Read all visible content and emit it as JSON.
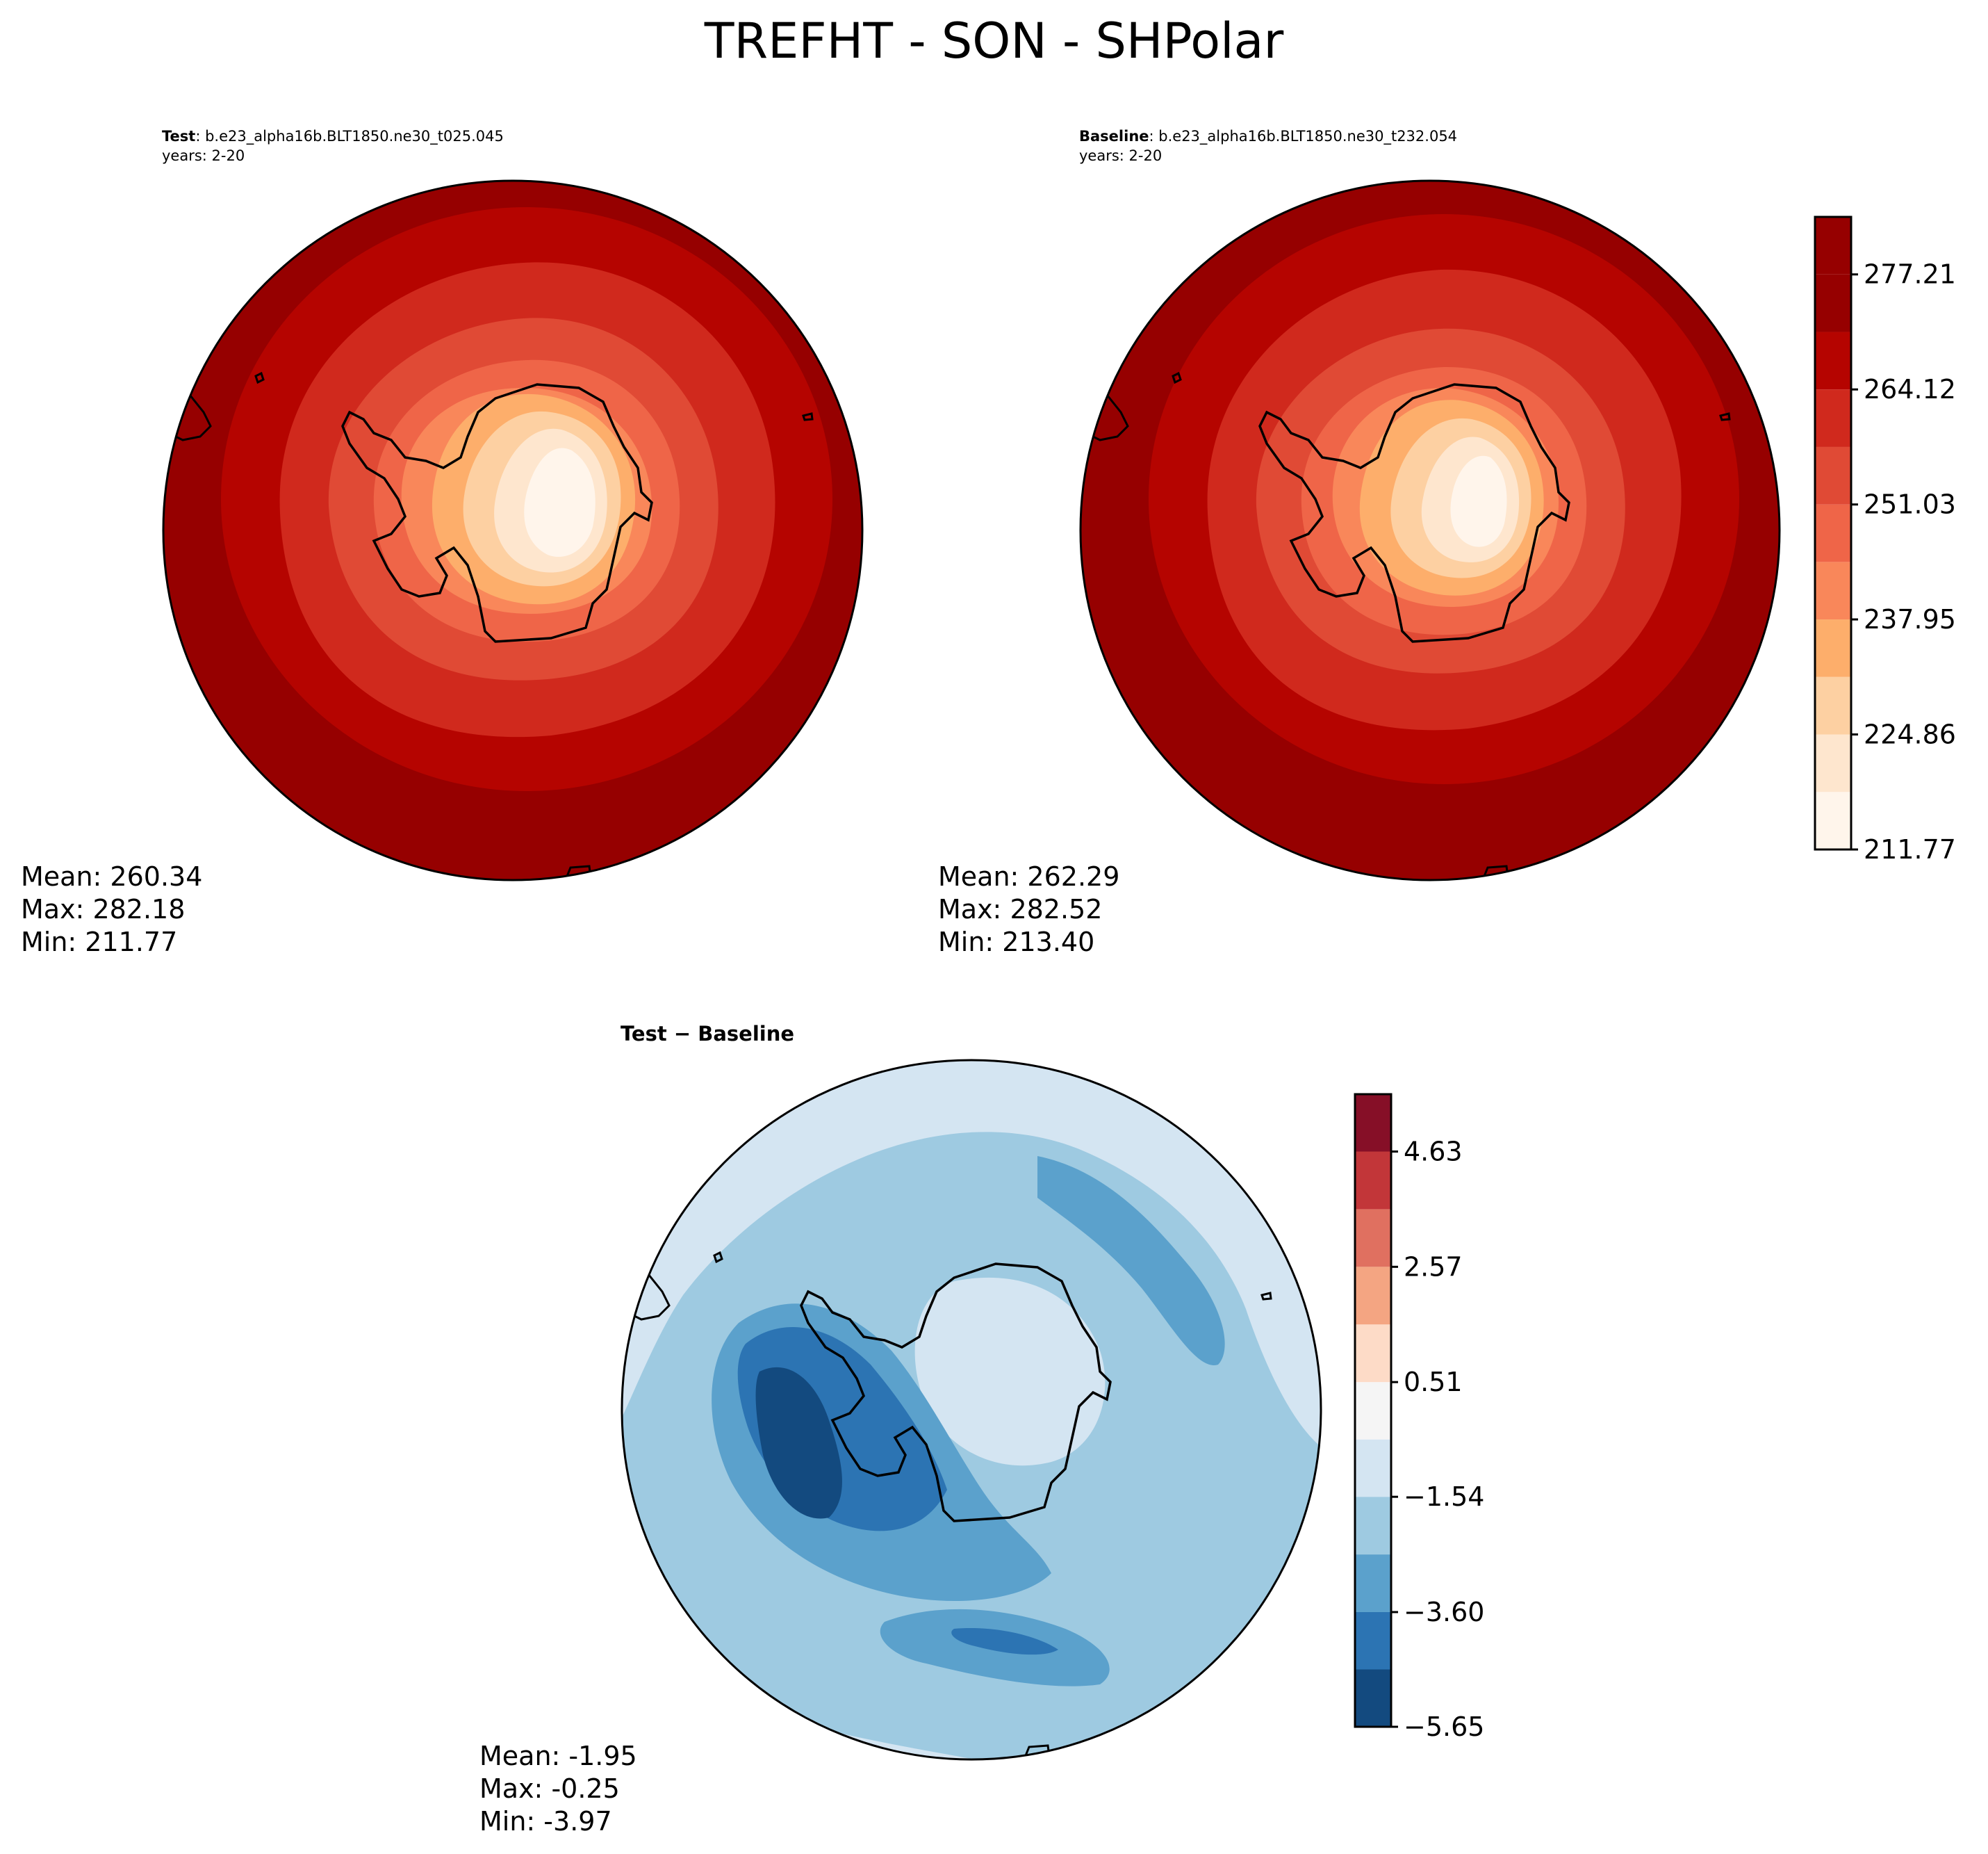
{
  "figure": {
    "title": "TREFHT - SON - SHPolar"
  },
  "panels": {
    "test": {
      "label": "Test",
      "case": ": b.e23_alpha16b.BLT1850.ne30_t025.045",
      "years": "years: 2-20",
      "mean": "Mean: 260.34",
      "max": "Max: 282.18",
      "min": "Min: 211.77"
    },
    "baseline": {
      "label": "Baseline",
      "case": ": b.e23_alpha16b.BLT1850.ne30_t232.054",
      "years": "years: 2-20",
      "mean": "Mean: 262.29",
      "max": "Max: 282.52",
      "min": "Min: 213.40"
    },
    "diff": {
      "title": "Test − Baseline",
      "mean": "Mean: -1.95",
      "max": "Max: -0.25",
      "min": "Min: -3.97"
    }
  },
  "chart_data": [
    {
      "type": "heatmap",
      "panel": "Test",
      "projection": "south-polar-stereographic",
      "colormap": "Reds",
      "colorbar_levels": [
        211.77,
        218.315,
        224.86,
        231.405,
        237.95,
        244.49,
        251.03,
        257.575,
        264.12,
        270.665,
        277.21,
        283.755
      ],
      "colorbar_ticks": [
        "211.77",
        "224.86",
        "237.95",
        "251.03",
        "264.12",
        "277.21"
      ],
      "colors": [
        "#fff5eb",
        "#fee6ce",
        "#fdd0a2",
        "#fdae6b",
        "#f9875a",
        "#ef6548",
        "#e04a35",
        "#d0291d",
        "#b50400",
        "#960000"
      ],
      "stats": {
        "mean": 260.34,
        "max": 282.18,
        "min": 211.77
      }
    },
    {
      "type": "heatmap",
      "panel": "Baseline",
      "projection": "south-polar-stereographic",
      "colormap": "Reds",
      "colorbar_levels": [
        211.77,
        218.315,
        224.86,
        231.405,
        237.95,
        244.49,
        251.03,
        257.575,
        264.12,
        270.665,
        277.21,
        283.755
      ],
      "colorbar_ticks": [
        "211.77",
        "224.86",
        "237.95",
        "251.03",
        "264.12",
        "277.21"
      ],
      "stats": {
        "mean": 262.29,
        "max": 282.52,
        "min": 213.4
      }
    },
    {
      "type": "heatmap",
      "panel": "Test − Baseline",
      "projection": "south-polar-stereographic",
      "colormap": "RdBu_r",
      "colorbar_levels": [
        -5.65,
        -4.625,
        -3.6,
        -2.57,
        -1.54,
        -0.515,
        0.51,
        1.54,
        2.57,
        3.6,
        4.63,
        5.655
      ],
      "colorbar_ticks": [
        "−5.65",
        "−3.60",
        "−1.54",
        "0.51",
        "2.57",
        "4.63"
      ],
      "colors": [
        "#134a7f",
        "#2c74b3",
        "#5ba1cc",
        "#9ecae1",
        "#d4e5f2",
        "#f5f5f5",
        "#fddbc7",
        "#f4a582",
        "#e07060",
        "#c23639",
        "#860f27"
      ],
      "stats": {
        "mean": -1.95,
        "max": -0.25,
        "min": -3.97
      }
    }
  ]
}
